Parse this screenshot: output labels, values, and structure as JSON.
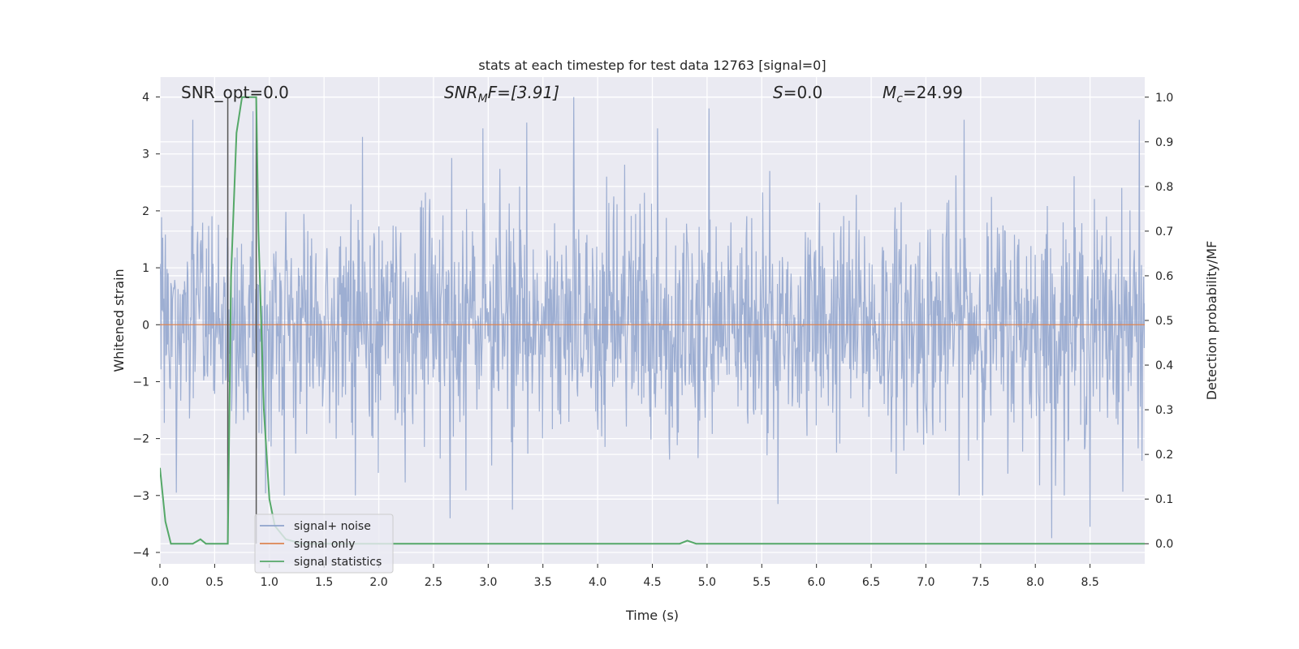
{
  "chart_data": {
    "type": "line",
    "title": "stats at each timestep for test data 12763 [signal=0]",
    "xlabel": "Time (s)",
    "ylabel": "Whitened strain",
    "y2label": "Detection probability/MF",
    "xlim": [
      0,
      9.0
    ],
    "ylim": [
      -4.2,
      4.35
    ],
    "y2lim": [
      -0.045,
      1.045
    ],
    "xticks": [
      0.0,
      0.5,
      1.0,
      1.5,
      2.0,
      2.5,
      3.0,
      3.5,
      4.0,
      4.5,
      5.0,
      5.5,
      6.0,
      6.5,
      7.0,
      7.5,
      8.0,
      8.5
    ],
    "yticks": [
      4,
      3,
      2,
      1,
      0,
      -1,
      -2,
      -3,
      -4
    ],
    "y2ticks": [
      1.0,
      0.9,
      0.8,
      0.7,
      0.6,
      0.5,
      0.4,
      0.3,
      0.2,
      0.1,
      0.0
    ],
    "grid": true,
    "legend_placement": "lower-left",
    "annotations": {
      "snr_opt": "SNR_opt=0.0",
      "snr_mf_base": "SNR",
      "snr_mf_sub": "M",
      "snr_mf_rest": "F=[3.91]",
      "s_base": "S",
      "s_rest": "=0.0",
      "mc_base": "M",
      "mc_sub": "c",
      "mc_rest": "=24.99"
    },
    "vlines": [
      0.62,
      0.88
    ],
    "series": [
      {
        "name": "signal+ noise",
        "color": "#8fa3cc",
        "noise_sigma": 1.0,
        "x_range": [
          0,
          9.0
        ],
        "samples": 1800,
        "peaks": [
          {
            "x": 0.3,
            "y": 3.6
          },
          {
            "x": 0.85,
            "y": 3.75
          },
          {
            "x": 1.85,
            "y": 3.3
          },
          {
            "x": 2.95,
            "y": 3.45
          },
          {
            "x": 3.35,
            "y": 3.55
          },
          {
            "x": 3.78,
            "y": 4.0
          },
          {
            "x": 4.55,
            "y": 3.45
          },
          {
            "x": 5.02,
            "y": 3.8
          },
          {
            "x": 7.35,
            "y": 3.6
          },
          {
            "x": 8.95,
            "y": 3.6
          },
          {
            "x": 2.65,
            "y": -3.4
          },
          {
            "x": 3.22,
            "y": -3.25
          },
          {
            "x": 5.65,
            "y": -3.15
          },
          {
            "x": 8.15,
            "y": -3.75
          },
          {
            "x": 8.5,
            "y": -3.55
          },
          {
            "x": 0.15,
            "y": -2.95
          }
        ]
      },
      {
        "name": "signal only",
        "color": "#dd8452",
        "x": [
          0.0,
          9.0
        ],
        "y": [
          0.0,
          0.0
        ]
      },
      {
        "name": "signal statistics",
        "color": "#55a868",
        "axis": "right",
        "x": [
          0.0,
          0.05,
          0.1,
          0.2,
          0.3,
          0.37,
          0.42,
          0.5,
          0.62,
          0.65,
          0.7,
          0.75,
          0.8,
          0.88,
          0.9,
          0.95,
          1.0,
          1.05,
          1.15,
          1.3,
          1.5,
          2.0,
          3.0,
          4.0,
          4.6,
          4.75,
          4.82,
          4.9,
          5.0,
          6.0,
          7.0,
          8.0,
          9.0
        ],
        "y": [
          0.17,
          0.05,
          0.0,
          0.0,
          0.0,
          0.01,
          0.0,
          0.0,
          0.0,
          0.6,
          0.92,
          1.0,
          1.0,
          1.0,
          0.7,
          0.3,
          0.1,
          0.04,
          0.01,
          0.0,
          0.0,
          0.0,
          0.0,
          0.0,
          0.0,
          0.0,
          0.007,
          0.0,
          0.0,
          0.0,
          0.0,
          0.0,
          0.0
        ]
      }
    ]
  }
}
